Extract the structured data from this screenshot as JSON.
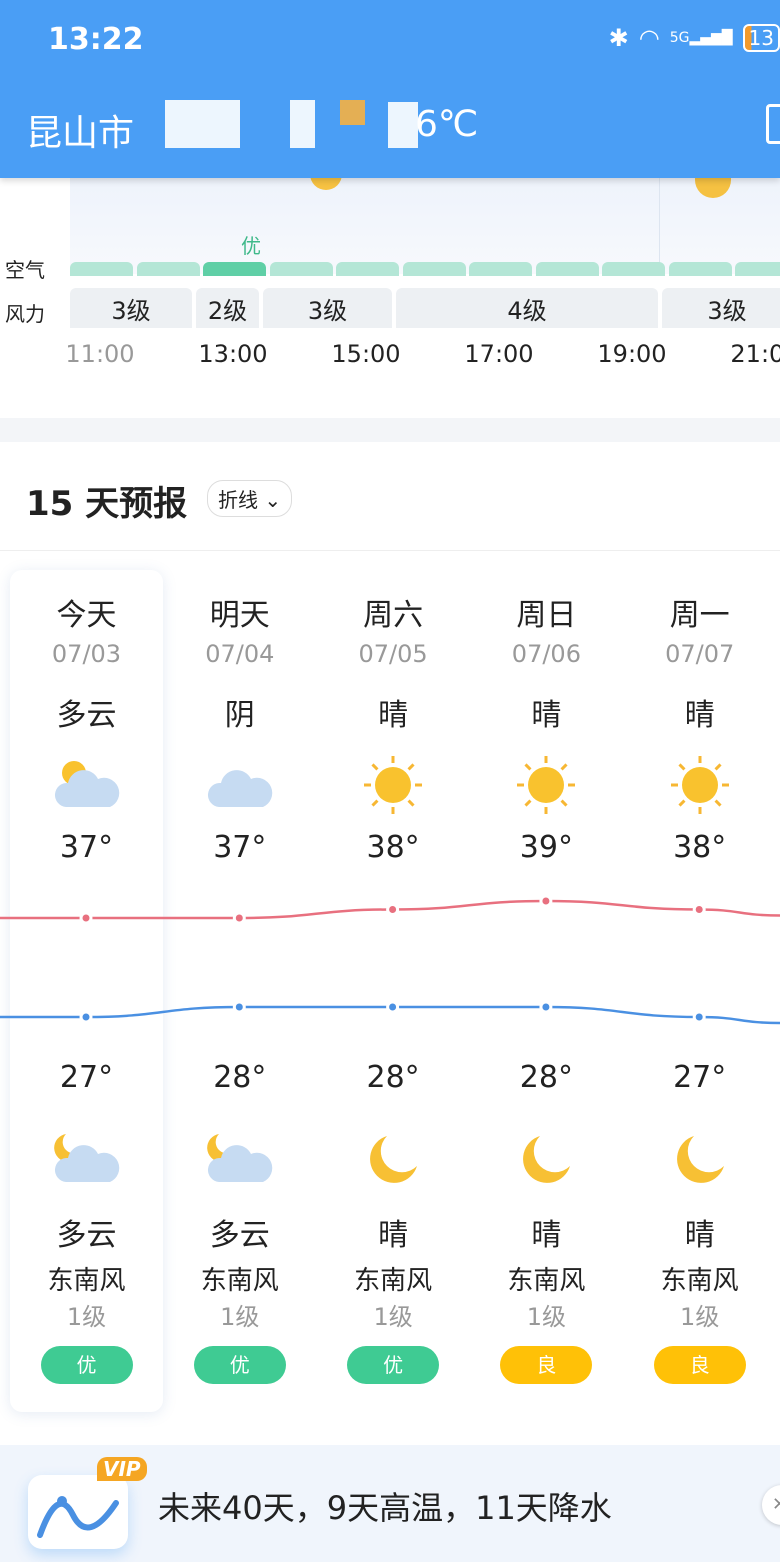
{
  "status": {
    "time": "13:22",
    "battery": "13",
    "network": "5G"
  },
  "header": {
    "city": "昆山市",
    "temp": "6℃"
  },
  "hourly": {
    "air_label": "空气",
    "wind_label": "风力",
    "air_now": "优",
    "wind": [
      {
        "v": "3级"
      },
      {
        "v": "2级"
      },
      {
        "v": "3级"
      },
      {
        "v": "4级"
      },
      {
        "v": "3级"
      }
    ],
    "hours": [
      "11:00",
      "13:00",
      "15:00",
      "17:00",
      "19:00",
      "21:00"
    ]
  },
  "forecast": {
    "title": "15 天预报",
    "mode": "折线",
    "days": [
      {
        "name": "今天",
        "date": "07/03",
        "day_weather": "多云",
        "day_icon": "partly-cloudy-icon",
        "high": "37°",
        "low": "27°",
        "night_icon": "partly-cloudy-night-icon",
        "night_weather": "多云",
        "wind": "东南风",
        "level": "1级",
        "aqi": "优",
        "aqi_color": "#3FCB93"
      },
      {
        "name": "明天",
        "date": "07/04",
        "day_weather": "阴",
        "day_icon": "cloud-icon",
        "high": "37°",
        "low": "28°",
        "night_icon": "partly-cloudy-night-icon",
        "night_weather": "多云",
        "wind": "东南风",
        "level": "1级",
        "aqi": "优",
        "aqi_color": "#3FCB93"
      },
      {
        "name": "周六",
        "date": "07/05",
        "day_weather": "晴",
        "day_icon": "sun-icon",
        "high": "38°",
        "low": "28°",
        "night_icon": "moon-icon",
        "night_weather": "晴",
        "wind": "东南风",
        "level": "1级",
        "aqi": "优",
        "aqi_color": "#3FCB93"
      },
      {
        "name": "周日",
        "date": "07/06",
        "day_weather": "晴",
        "day_icon": "sun-icon",
        "high": "39°",
        "low": "28°",
        "night_icon": "moon-icon",
        "night_weather": "晴",
        "wind": "东南风",
        "level": "1级",
        "aqi": "良",
        "aqi_color": "#FFC107"
      },
      {
        "name": "周一",
        "date": "07/07",
        "day_weather": "晴",
        "day_icon": "sun-icon",
        "high": "38°",
        "low": "27°",
        "night_icon": "moon-icon",
        "night_weather": "晴",
        "wind": "东南风",
        "level": "1级",
        "aqi": "良",
        "aqi_color": "#FFC107"
      }
    ],
    "high_color": "#E8707F",
    "low_color": "#4A90E2"
  },
  "banner": {
    "vip": "VIP",
    "text": "未来40天，9天高温，11天降水"
  }
}
